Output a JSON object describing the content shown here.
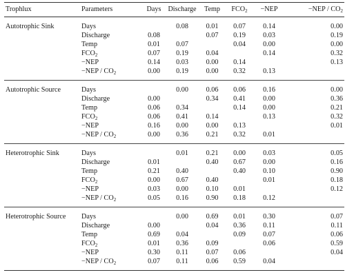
{
  "header": {
    "trophlux": "Trophlux",
    "parameters": "Parameters",
    "days": "Days",
    "discharge": "Discharge",
    "temp": "Temp",
    "fco2": "FCO",
    "fco2_sub": "2",
    "nep": "−NEP",
    "ratio": "−NEP / CO",
    "ratio_sub": "2"
  },
  "groups": [
    {
      "name": "Autotrophic Sink",
      "rows": [
        {
          "param": "Days",
          "param_sub": "",
          "cells": [
            "",
            "0.08",
            "0.01",
            "0.07",
            "0.14",
            "0.00"
          ]
        },
        {
          "param": "Discharge",
          "param_sub": "",
          "cells": [
            "0.08",
            "",
            "0.07",
            "0.19",
            "0.03",
            "0.19"
          ]
        },
        {
          "param": "Temp",
          "param_sub": "",
          "cells": [
            "0.01",
            "0.07",
            "",
            "0.04",
            "0.00",
            "0.00"
          ]
        },
        {
          "param": "FCO",
          "param_sub": "2",
          "cells": [
            "0.07",
            "0.19",
            "0.04",
            "",
            "0.14",
            "0.32"
          ]
        },
        {
          "param": "−NEP",
          "param_sub": "",
          "cells": [
            "0.14",
            "0.03",
            "0.00",
            "0.14",
            "",
            "0.13"
          ]
        },
        {
          "param": "−NEP / CO",
          "param_sub": "2",
          "cells": [
            "0.00",
            "0.19",
            "0.00",
            "0.32",
            "0.13",
            ""
          ]
        }
      ]
    },
    {
      "name": "Autotrophic Source",
      "rows": [
        {
          "param": "Days",
          "param_sub": "",
          "cells": [
            "",
            "0.00",
            "0.06",
            "0.06",
            "0.16",
            "0.00"
          ]
        },
        {
          "param": "Discharge",
          "param_sub": "",
          "cells": [
            "0.00",
            "",
            "0.34",
            "0.41",
            "0.00",
            "0.36"
          ]
        },
        {
          "param": "Temp",
          "param_sub": "",
          "cells": [
            "0.06",
            "0.34",
            "",
            "0.14",
            "0.00",
            "0.21"
          ]
        },
        {
          "param": "FCO",
          "param_sub": "2",
          "cells": [
            "0.06",
            "0.41",
            "0.14",
            "",
            "0.13",
            "0.32"
          ]
        },
        {
          "param": "−NEP",
          "param_sub": "",
          "cells": [
            "0.16",
            "0.00",
            "0.00",
            "0.13",
            "",
            "0.01"
          ]
        },
        {
          "param": "−NEP / CO",
          "param_sub": "2",
          "cells": [
            "0.00",
            "0.36",
            "0.21",
            "0.32",
            "0.01",
            ""
          ]
        }
      ]
    },
    {
      "name": "Heterotrophic Sink",
      "rows": [
        {
          "param": "Days",
          "param_sub": "",
          "cells": [
            "",
            "0.01",
            "0.21",
            "0.00",
            "0.03",
            "0.05"
          ]
        },
        {
          "param": "Discharge",
          "param_sub": "",
          "cells": [
            "0.01",
            "",
            "0.40",
            "0.67",
            "0.00",
            "0.16"
          ]
        },
        {
          "param": "Temp",
          "param_sub": "",
          "cells": [
            "0.21",
            "0.40",
            "",
            "0.40",
            "0.10",
            "0.90"
          ]
        },
        {
          "param": "FCO",
          "param_sub": "2",
          "cells": [
            "0.00",
            "0.67",
            "0.40",
            "",
            "0.01",
            "0.18"
          ]
        },
        {
          "param": "−NEP",
          "param_sub": "",
          "cells": [
            "0.03",
            "0.00",
            "0.10",
            "0.01",
            "",
            "0.12"
          ]
        },
        {
          "param": "−NEP / CO",
          "param_sub": "2",
          "cells": [
            "0.05",
            "0.16",
            "0.90",
            "0.18",
            "0.12",
            ""
          ]
        }
      ]
    },
    {
      "name": "Heterotrophic Source",
      "rows": [
        {
          "param": "Days",
          "param_sub": "",
          "cells": [
            "",
            "0.00",
            "0.69",
            "0.01",
            "0.30",
            "0.07"
          ]
        },
        {
          "param": "Discharge",
          "param_sub": "",
          "cells": [
            "0.00",
            "",
            "0.04",
            "0.36",
            "0.11",
            "0.11"
          ]
        },
        {
          "param": "Temp",
          "param_sub": "",
          "cells": [
            "0.69",
            "0.04",
            "",
            "0.09",
            "0.07",
            "0.06"
          ]
        },
        {
          "param": "FCO",
          "param_sub": "2",
          "cells": [
            "0.01",
            "0.36",
            "0.09",
            "",
            "0.06",
            "0.59"
          ]
        },
        {
          "param": "−NEP",
          "param_sub": "",
          "cells": [
            "0.30",
            "0.11",
            "0.07",
            "0.06",
            "",
            "0.04"
          ]
        },
        {
          "param": "−NEP / CO",
          "param_sub": "2",
          "cells": [
            "0.07",
            "0.11",
            "0.06",
            "0.59",
            "0.04",
            ""
          ]
        }
      ]
    }
  ]
}
